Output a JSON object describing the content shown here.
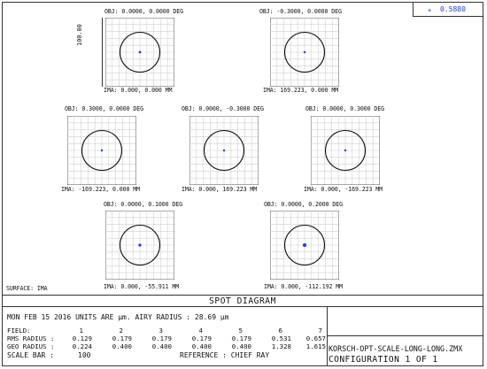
{
  "wavelength": {
    "value": "0.5880",
    "color": "#1a3ee0"
  },
  "title": "SPOT DIAGRAM",
  "surface_label": "SURFACE: IMA",
  "scale_label": "100.00",
  "fields": [
    {
      "obj": "OBJ: 0.0000, 0.0000 DEG",
      "ima": "IMA: 0.000, 0.000 MM",
      "dot_r": 1.4
    },
    {
      "obj": "OBJ: -0.3000, 0.0000 DEG",
      "ima": "IMA: 169.223, 0.000 MM",
      "dot_r": 1.2
    },
    {
      "obj": "OBJ: 0.3000, 0.0000 DEG",
      "ima": "IMA: -169.223, 0.000 MM",
      "dot_r": 1.2
    },
    {
      "obj": "OBJ: 0.0000, -0.3000 DEG",
      "ima": "IMA: 0.000, 169.223 MM",
      "dot_r": 1.2
    },
    {
      "obj": "OBJ: 0.0000, 0.3000 DEG",
      "ima": "IMA: 0.000, -169.223 MM",
      "dot_r": 1.2
    },
    {
      "obj": "OBJ: 0.0000, 0.1000 DEG",
      "ima": "IMA: 0.000, -55.911 MM",
      "dot_r": 1.6
    },
    {
      "obj": "OBJ: 0.0000, 0.2000 DEG",
      "ima": "IMA: 0.000, -112.192 MM",
      "dot_r": 2.0
    }
  ],
  "info": {
    "date_line": "MON FEB 15 2016  UNITS ARE µm.  AIRY RADIUS : 28.69 µm",
    "field_label": "FIELD",
    "field_sep": ":",
    "field_numbers": [
      "1",
      "2",
      "3",
      "4",
      "5",
      "6",
      "7"
    ],
    "rms_label": "RMS RADIUS :",
    "rms_values": [
      "0.129",
      "0.179",
      "0.179",
      "0.179",
      "0.179",
      "0.531",
      "0.657"
    ],
    "geo_label": "GEO RADIUS :",
    "geo_values": [
      "0.224",
      "0.400",
      "0.400",
      "0.400",
      "0.400",
      "1.328",
      "1.615"
    ],
    "scale_bar_label": "SCALE BAR  :",
    "scale_bar_value": "100",
    "reference": "REFERENCE  : CHIEF RAY"
  },
  "file_name": "KORSCH-OPT-SCALE-LONG-LONG.ZMX",
  "configuration": "CONFIGURATION  1 OF 1"
}
